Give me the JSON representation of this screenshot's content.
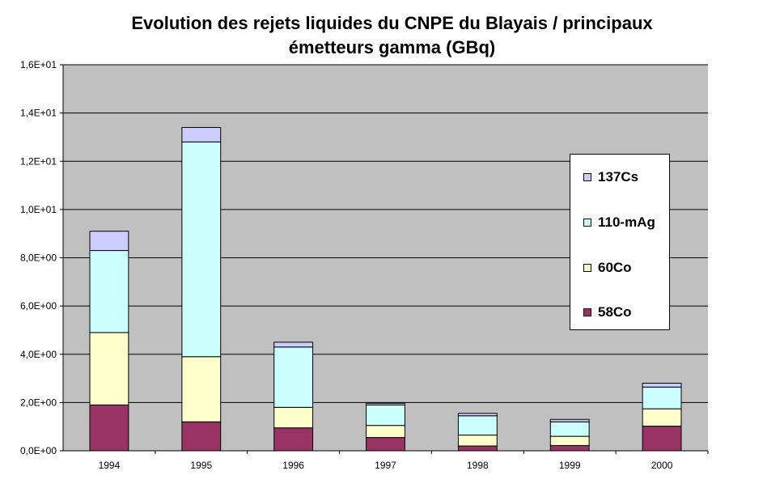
{
  "chart_data": {
    "type": "bar",
    "stacked": true,
    "title": "Evolution des rejets liquides du CNPE du Blayais / principaux émetteurs gamma (GBq)",
    "title_lines": [
      "Evolution des rejets liquides du CNPE du Blayais / principaux",
      "émetteurs gamma (GBq)"
    ],
    "categories": [
      "1994",
      "1995",
      "1996",
      "1997",
      "1998",
      "1999",
      "2000"
    ],
    "series": [
      {
        "name": "58Co",
        "color": "#993366",
        "values": [
          1.9,
          1.2,
          0.95,
          0.55,
          0.2,
          0.22,
          1.02
        ]
      },
      {
        "name": "60Co",
        "color": "#ffffcc",
        "values": [
          3.0,
          2.7,
          0.85,
          0.5,
          0.45,
          0.38,
          0.72
        ]
      },
      {
        "name": "110-mAg",
        "color": "#ccffff",
        "values": [
          3.4,
          8.9,
          2.5,
          0.85,
          0.8,
          0.6,
          0.9
        ]
      },
      {
        "name": "137Cs",
        "color": "#ccccff",
        "values": [
          0.8,
          0.6,
          0.2,
          0.07,
          0.1,
          0.1,
          0.16
        ]
      }
    ],
    "y_ticks": [
      "0,0E+00",
      "2,0E+00",
      "4,0E+00",
      "6,0E+00",
      "8,0E+00",
      "1,0E+01",
      "1,2E+01",
      "1,4E+01",
      "1,6E+01"
    ],
    "ylim": [
      0,
      16
    ],
    "grid": true,
    "legend_position": "right",
    "legend_order": [
      "137Cs",
      "110-mAg",
      "60Co",
      "58Co"
    ],
    "plot_background": "#c0c0c0"
  }
}
